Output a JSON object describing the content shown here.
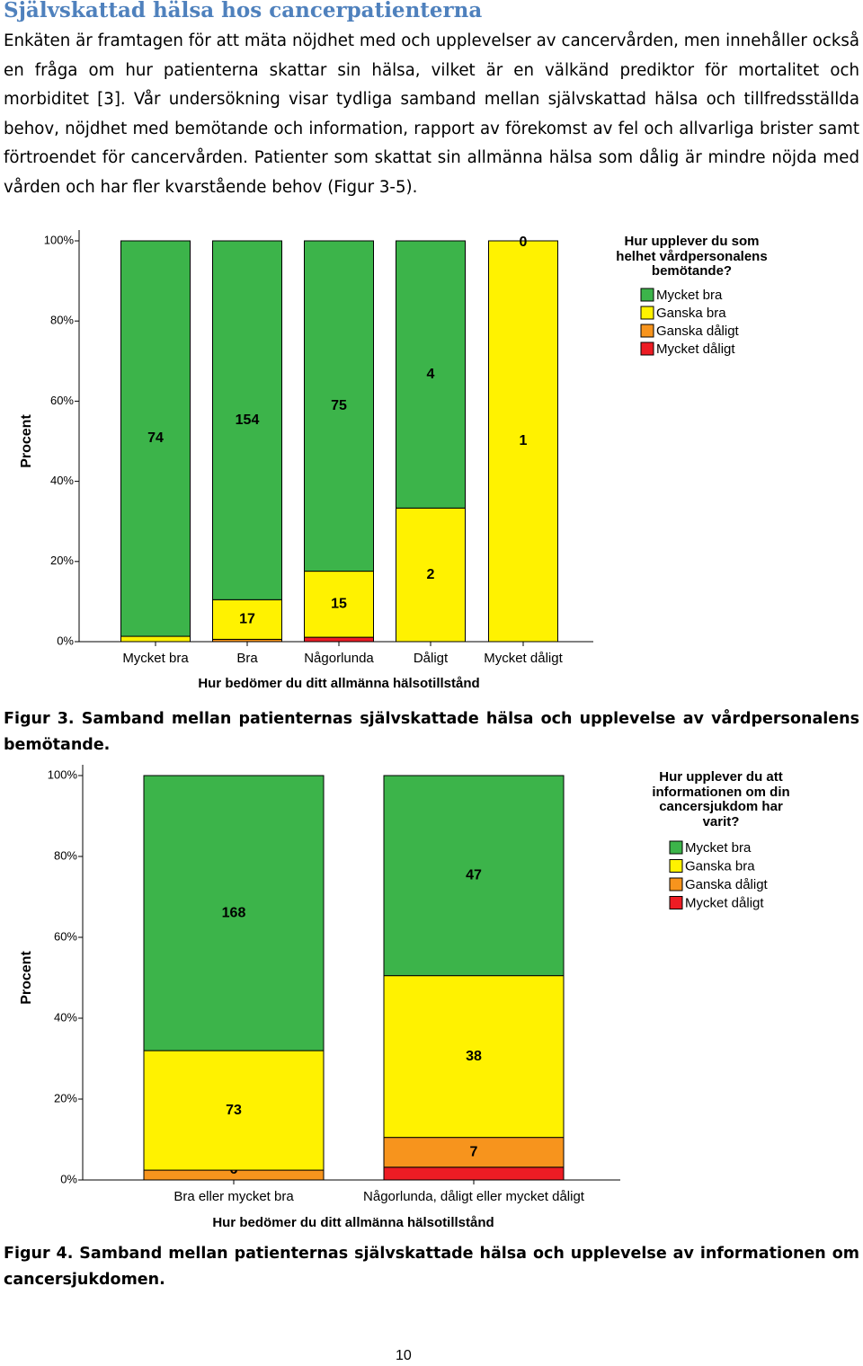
{
  "title": "Självskattad hälsa hos cancerpatienterna",
  "paragraph": "Enkäten är framtagen för att mäta nöjdhet med och upplevelser av cancervården, men innehåller också en fråga om hur patienterna skattar sin hälsa, vilket är en välkänd prediktor för mortalitet och morbiditet [3]. Vår undersökning visar tydliga samband mellan självskattad hälsa och tillfredsställda behov, nöjdhet med bemötande och information, rapport av förekomst av fel och allvarliga brister samt förtroendet för cancervården. Patienter som skattat sin allmänna hälsa som dålig är mindre nöjda med vården och har fler kvarstående behov (Figur 3-5).",
  "captions": [
    "Figur 3. Samband mellan patienternas självskattade hälsa och upplevelse av vårdpersonalens bemötande.",
    "Figur 4. Samband mellan patienternas självskattade hälsa och upplevelse av informationen om cancersjukdomen."
  ],
  "page_number": "10",
  "chart_data": [
    {
      "type": "bar",
      "stacking": "percent",
      "xlabel": "Hur bedömer du ditt allmänna hälsotillstånd",
      "ylabel": "Procent",
      "legend_title": "Hur upplever du som helhet vårdpersonalens bemötande?",
      "categories": [
        "Mycket bra",
        "Bra",
        "Någorlunda",
        "Dåligt",
        "Mycket dåligt"
      ],
      "series": [
        {
          "name": "Mycket bra",
          "color": "#3cb44a",
          "values": [
            74,
            154,
            75,
            4,
            0
          ],
          "labeled": [
            true,
            true,
            true,
            true,
            true
          ]
        },
        {
          "name": "Ganska bra",
          "color": "#fff200",
          "values": [
            1,
            17,
            15,
            2,
            1
          ],
          "labeled": [
            false,
            true,
            true,
            true,
            true
          ]
        },
        {
          "name": "Ganska dåligt",
          "color": "#f7941d",
          "values": [
            0,
            1,
            0,
            0,
            0
          ],
          "labeled": [
            false,
            false,
            false,
            false,
            false
          ]
        },
        {
          "name": "Mycket dåligt",
          "color": "#ed1c24",
          "values": [
            0,
            0,
            1,
            0,
            0
          ],
          "labeled": [
            true,
            false,
            true,
            true,
            true
          ]
        }
      ],
      "ylim": [
        0,
        100
      ],
      "yticks": [
        {
          "value": 0,
          "label": "0%"
        },
        {
          "value": 20,
          "label": "20%"
        },
        {
          "value": 40,
          "label": "40%"
        },
        {
          "value": 60,
          "label": "60%"
        },
        {
          "value": 80,
          "label": "80%"
        },
        {
          "value": 100,
          "label": "100%"
        }
      ]
    },
    {
      "type": "bar",
      "stacking": "percent",
      "xlabel": "Hur bedömer du ditt allmänna hälsotillstånd",
      "ylabel": "Procent",
      "legend_title": "Hur upplever du att informationen om din cancersjukdom har varit?",
      "categories": [
        "Bra eller mycket bra",
        "Någorlunda, dåligt eller mycket dåligt"
      ],
      "series": [
        {
          "name": "Mycket bra",
          "color": "#3cb44a",
          "values": [
            168,
            47
          ],
          "labeled": [
            true,
            true
          ]
        },
        {
          "name": "Ganska bra",
          "color": "#fff200",
          "values": [
            73,
            38
          ],
          "labeled": [
            true,
            true
          ]
        },
        {
          "name": "Ganska dåligt",
          "color": "#f7941d",
          "values": [
            6,
            7
          ],
          "labeled": [
            true,
            true
          ]
        },
        {
          "name": "Mycket dåligt",
          "color": "#ed1c24",
          "values": [
            0,
            3
          ],
          "labeled": [
            false,
            false
          ]
        }
      ],
      "ylim": [
        0,
        100
      ],
      "yticks": [
        {
          "value": 0,
          "label": "0%"
        },
        {
          "value": 20,
          "label": "20%"
        },
        {
          "value": 40,
          "label": "40%"
        },
        {
          "value": 60,
          "label": "60%"
        },
        {
          "value": 80,
          "label": "80%"
        },
        {
          "value": 100,
          "label": "100%"
        }
      ]
    }
  ]
}
